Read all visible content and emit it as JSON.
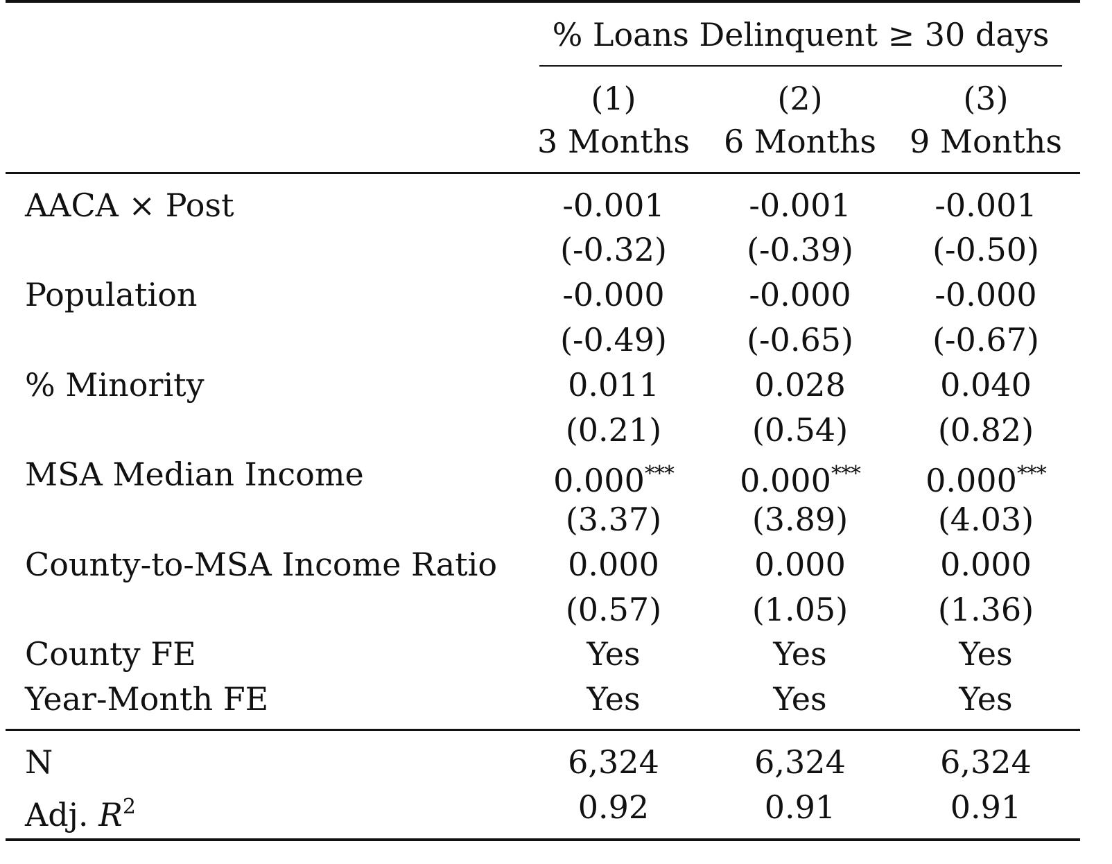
{
  "table": {
    "group_header": "% Loans Delinquent ≥ 30 days",
    "columns": [
      {
        "number": "(1)",
        "label": "3 Months"
      },
      {
        "number": "(2)",
        "label": "6 Months"
      },
      {
        "number": "(3)",
        "label": "9 Months"
      }
    ],
    "rows": [
      {
        "label": "AACA × Post",
        "coef": [
          "-0.001",
          "-0.001",
          "-0.001"
        ],
        "tstat": [
          "(-0.32)",
          "(-0.39)",
          "(-0.50)"
        ]
      },
      {
        "label": "Population",
        "coef": [
          "-0.000",
          "-0.000",
          "-0.000"
        ],
        "tstat": [
          "(-0.49)",
          "(-0.65)",
          "(-0.67)"
        ]
      },
      {
        "label": "% Minority",
        "coef": [
          "0.011",
          "0.028",
          "0.040"
        ],
        "tstat": [
          "(0.21)",
          "(0.54)",
          "(0.82)"
        ]
      },
      {
        "label": "MSA Median Income",
        "coef": [
          "0.000",
          "0.000",
          "0.000"
        ],
        "stars": [
          "***",
          "***",
          "***"
        ],
        "tstat": [
          "(3.37)",
          "(3.89)",
          "(4.03)"
        ]
      },
      {
        "label": "County-to-MSA Income Ratio",
        "coef": [
          "0.000",
          "0.000",
          "0.000"
        ],
        "tstat": [
          "(0.57)",
          "(1.05)",
          "(1.36)"
        ]
      }
    ],
    "fixed_effects": [
      {
        "label": "County FE",
        "values": [
          "Yes",
          "Yes",
          "Yes"
        ]
      },
      {
        "label": "Year-Month FE",
        "values": [
          "Yes",
          "Yes",
          "Yes"
        ]
      }
    ],
    "stats": [
      {
        "label": "N",
        "values": [
          "6,324",
          "6,324",
          "6,324"
        ]
      },
      {
        "label_prefix": "Adj. ",
        "label_var": "R",
        "label_sup": "2",
        "values": [
          "0.92",
          "0.91",
          "0.91"
        ]
      }
    ]
  }
}
